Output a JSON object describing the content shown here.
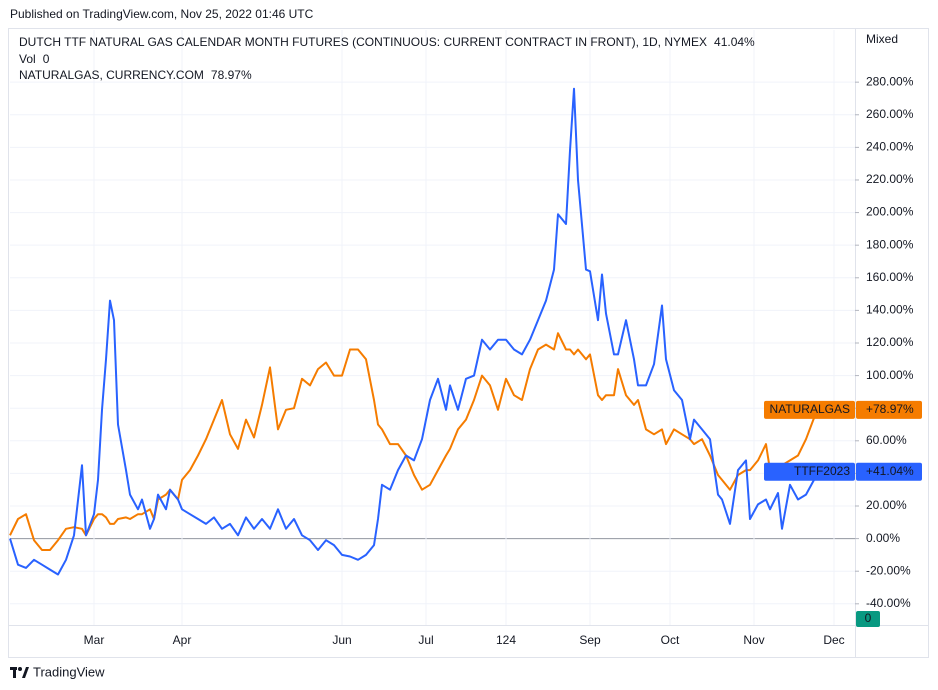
{
  "published": "Published on TradingView.com, Nov 25, 2022 01:46 UTC",
  "brand": "TradingView",
  "chart_data": {
    "type": "line",
    "scale_label": "Mixed",
    "volume": {
      "label": "Vol",
      "value": 0,
      "color": "#089981"
    },
    "x": [
      0,
      2,
      4,
      6,
      8,
      10,
      12,
      14,
      16,
      18,
      19,
      21,
      22,
      23,
      24,
      25,
      26,
      27,
      29,
      30,
      32,
      33,
      35,
      36,
      37,
      39,
      40,
      42,
      43,
      45,
      47,
      49,
      51,
      53,
      55,
      57,
      59,
      61,
      63,
      65,
      67,
      69,
      71,
      73,
      75,
      77,
      79,
      81,
      83,
      85,
      87,
      89,
      91,
      92,
      93,
      95,
      97,
      99,
      101,
      103,
      105,
      107,
      109,
      110,
      112,
      114,
      116,
      118,
      120,
      122,
      124,
      126,
      128,
      130,
      132,
      134,
      136,
      137,
      139,
      140,
      141,
      142,
      144,
      145,
      147,
      148,
      149,
      151,
      152,
      154,
      156,
      157,
      159,
      161,
      163,
      164,
      166,
      168,
      170,
      171,
      173,
      175,
      177,
      178,
      180,
      182,
      184,
      185,
      187,
      189,
      190,
      192,
      193,
      195,
      197,
      199,
      201
    ],
    "xlim": [
      0,
      211.25
    ],
    "xticks": [
      {
        "value": 21,
        "label": "Mar"
      },
      {
        "value": 43,
        "label": "Apr"
      },
      {
        "value": 83,
        "label": "Jun"
      },
      {
        "value": 104,
        "label": "Jul"
      },
      124,
      {
        "value": 145,
        "label": "Sep"
      },
      {
        "value": 165,
        "label": "Oct"
      },
      {
        "value": 186,
        "label": "Nov"
      },
      {
        "value": 206,
        "label": "Dec"
      }
    ],
    "ylim": [
      -53,
      312
    ],
    "yticks": [
      {
        "value": -40,
        "label": "-40.00%"
      },
      {
        "value": -20,
        "label": "-20.00%"
      },
      {
        "value": 0,
        "label": "0.00%"
      },
      {
        "value": 20,
        "label": "20.00%"
      },
      {
        "value": 40,
        "label": "40.00%"
      },
      {
        "value": 60,
        "label": "60.00%"
      },
      {
        "value": 80,
        "label": "80.00%"
      },
      {
        "value": 100,
        "label": "100.00%"
      },
      {
        "value": 120,
        "label": "120.00%"
      },
      {
        "value": 140,
        "label": "140.00%"
      },
      {
        "value": 160,
        "label": "160.00%"
      },
      {
        "value": 180,
        "label": "180.00%"
      },
      {
        "value": 200,
        "label": "200.00%"
      },
      {
        "value": 220,
        "label": "220.00%"
      },
      {
        "value": 240,
        "label": "240.00%"
      },
      {
        "value": 260,
        "label": "260.00%"
      },
      {
        "value": 280,
        "label": "280.00%"
      }
    ],
    "grid": true,
    "series": [
      {
        "name": "DUTCH TTF NATURAL GAS CALENDAR MONTH FUTURES (CONTINUOUS: CURRENT CONTRACT IN FRONT), 1D, NYMEX",
        "color": "#2962ff",
        "last_value": 41.04,
        "last_value_label": "41.04%",
        "tag_name": "TTFF2023",
        "tag_label": "+41.04%",
        "values": [
          0,
          -16,
          -18,
          -13,
          -16,
          -19,
          -22,
          -13,
          2,
          45,
          2,
          15,
          36,
          79,
          110,
          146,
          134,
          70,
          42,
          27,
          18,
          24,
          6,
          12,
          27,
          18,
          30,
          24,
          18,
          15,
          12,
          9,
          13,
          6,
          9,
          2,
          13,
          6,
          12,
          6,
          18,
          6,
          12,
          2,
          -1,
          -7,
          -1,
          -4,
          -10,
          -11,
          -13,
          -10,
          -4,
          12,
          33,
          30,
          42,
          51,
          48,
          61,
          85,
          98,
          79,
          94,
          79,
          98,
          100,
          122,
          116,
          122,
          122,
          116,
          113,
          122,
          134,
          146,
          165,
          199,
          193,
          238,
          276,
          220,
          165,
          164,
          134,
          162,
          138,
          113,
          113,
          134,
          110,
          94,
          94,
          107,
          143,
          110,
          91,
          85,
          61,
          73,
          67,
          61,
          27,
          24,
          9,
          42,
          48,
          12,
          21,
          24,
          18,
          28,
          6,
          33,
          24,
          27,
          36
        ]
      },
      {
        "name": "NATURALGAS, CURRENCY.COM",
        "color": "#f57c00",
        "last_value": 78.97,
        "last_value_label": "78.97%",
        "tag_name": "NATURALGAS",
        "tag_label": "+78.97%",
        "values": [
          2,
          12,
          15,
          -1,
          -7,
          -7,
          -1,
          6,
          7,
          6,
          2,
          12,
          15,
          15,
          13,
          9,
          9,
          12,
          13,
          12,
          15,
          15,
          18,
          12,
          24,
          27,
          30,
          24,
          36,
          42,
          51,
          61,
          73,
          85,
          64,
          55,
          73,
          62,
          82,
          105,
          67,
          79,
          80,
          98,
          94,
          104,
          108,
          100,
          100,
          116,
          116,
          110,
          85,
          70,
          67,
          58,
          58,
          51,
          39,
          30,
          33,
          42,
          51,
          55,
          67,
          73,
          85,
          100,
          94,
          79,
          98,
          88,
          85,
          104,
          116,
          119,
          116,
          126,
          116,
          116,
          113,
          116,
          110,
          113,
          88,
          85,
          88,
          88,
          104,
          88,
          82,
          85,
          67,
          64,
          67,
          58,
          67,
          64,
          61,
          58,
          61,
          51,
          39,
          36,
          30,
          39,
          42,
          42,
          48,
          58,
          42,
          45,
          45,
          48,
          51,
          61,
          74
        ]
      }
    ]
  }
}
